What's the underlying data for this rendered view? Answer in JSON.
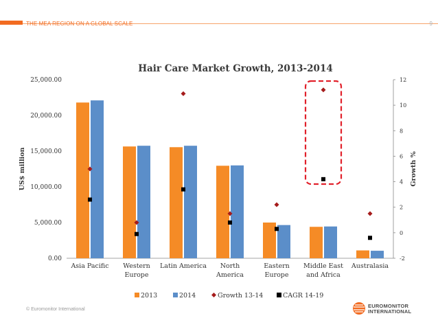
{
  "header": {
    "title": "THE MEA REGION ON A GLOBAL SCALE",
    "page_number": "9"
  },
  "footer": {
    "copyright": "© Euromonitor International",
    "logo_line1": "EUROMONITOR",
    "logo_line2": "INTERNATIONAL"
  },
  "colors": {
    "accent": "#f26b21",
    "bar_2013": "#f58b26",
    "bar_2014": "#5b8ec9",
    "growth": "#a51c1c",
    "cagr": "#000000",
    "highlight_box": "#e1202a"
  },
  "chart_data": {
    "type": "bar",
    "title": "Hair Care Market Growth, 2013-2014",
    "ylabel": "US$ million",
    "y2label": "Growth %",
    "ylim": [
      0,
      25000
    ],
    "y2lim": [
      -2,
      12
    ],
    "yticks": [
      "0.00",
      "5,000.00",
      "10,000.00",
      "15,000.00",
      "20,000.00",
      "25,000.00"
    ],
    "y2ticks": [
      "-2",
      "0",
      "2",
      "4",
      "6",
      "8",
      "10",
      "12"
    ],
    "categories": [
      [
        "Asia Pacific"
      ],
      [
        "Western",
        "Europe"
      ],
      [
        "Latin America"
      ],
      [
        "North",
        "America"
      ],
      [
        "Eastern",
        "Europe"
      ],
      [
        "Middle East",
        "and Africa"
      ],
      [
        "Australasia"
      ]
    ],
    "series": [
      {
        "name": "2013",
        "kind": "bar",
        "axis": "left",
        "values": [
          21800,
          15650,
          15550,
          12950,
          5000,
          4400,
          1100
        ]
      },
      {
        "name": "2014",
        "kind": "bar",
        "axis": "left",
        "values": [
          22100,
          15750,
          15750,
          13000,
          4650,
          4450,
          1050
        ]
      },
      {
        "name": "Growth 13-14",
        "kind": "marker-diamond",
        "axis": "right",
        "values": [
          5.0,
          0.8,
          10.9,
          1.5,
          2.2,
          11.2,
          1.5
        ]
      },
      {
        "name": "CAGR 14-19",
        "kind": "marker-square",
        "axis": "right",
        "values": [
          2.6,
          -0.1,
          3.4,
          0.8,
          0.3,
          4.2,
          -0.4
        ]
      }
    ],
    "highlight_category_index": 5,
    "legend_position": "bottom",
    "grid": false
  }
}
